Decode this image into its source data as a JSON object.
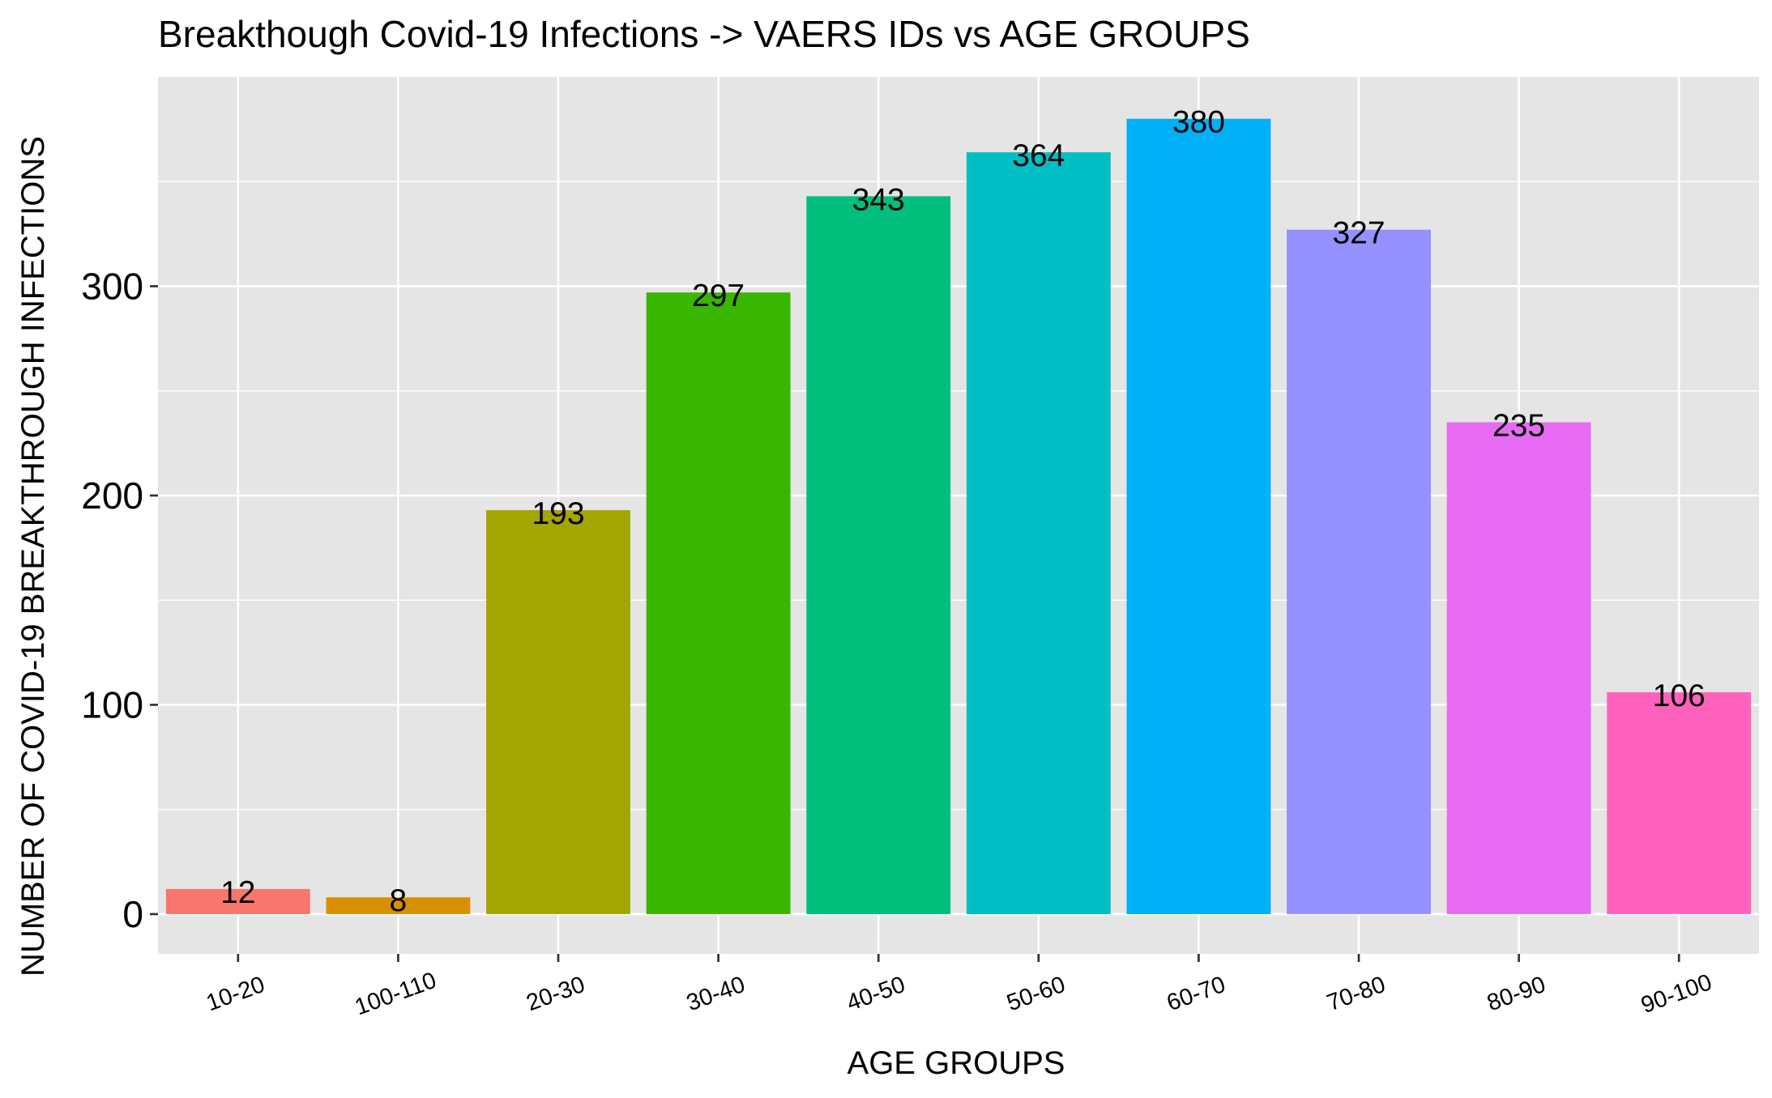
{
  "chart_data": {
    "type": "bar",
    "title": "Breakthough Covid-19 Infections -> VAERS IDs vs AGE GROUPS",
    "xlabel": "AGE GROUPS",
    "ylabel": "NUMBER OF COVID-19 BREAKTHROUGH INFECTIONS",
    "categories": [
      "10-20",
      "100-110",
      "20-30",
      "30-40",
      "40-50",
      "50-60",
      "60-70",
      "70-80",
      "80-90",
      "90-100"
    ],
    "values": [
      12,
      8,
      193,
      297,
      343,
      364,
      380,
      327,
      235,
      106
    ],
    "data_labels": [
      "12",
      "8",
      "193",
      "297",
      "343",
      "364",
      "380",
      "327",
      "235",
      "106"
    ],
    "colors": [
      "#F8766D",
      "#D89000",
      "#A3A500",
      "#39B600",
      "#00BF7D",
      "#00BFC4",
      "#00B0F6",
      "#9590FF",
      "#E76BF3",
      "#FF62BC"
    ],
    "yticks": [
      0,
      100,
      200,
      300
    ],
    "ytick_labels": [
      "0",
      "100",
      "200",
      "300"
    ],
    "ylim": [
      -19,
      400
    ],
    "grid": true,
    "legend": "none",
    "panel_background": "#E5E5E5",
    "gridline_color": "#FFFFFF"
  }
}
